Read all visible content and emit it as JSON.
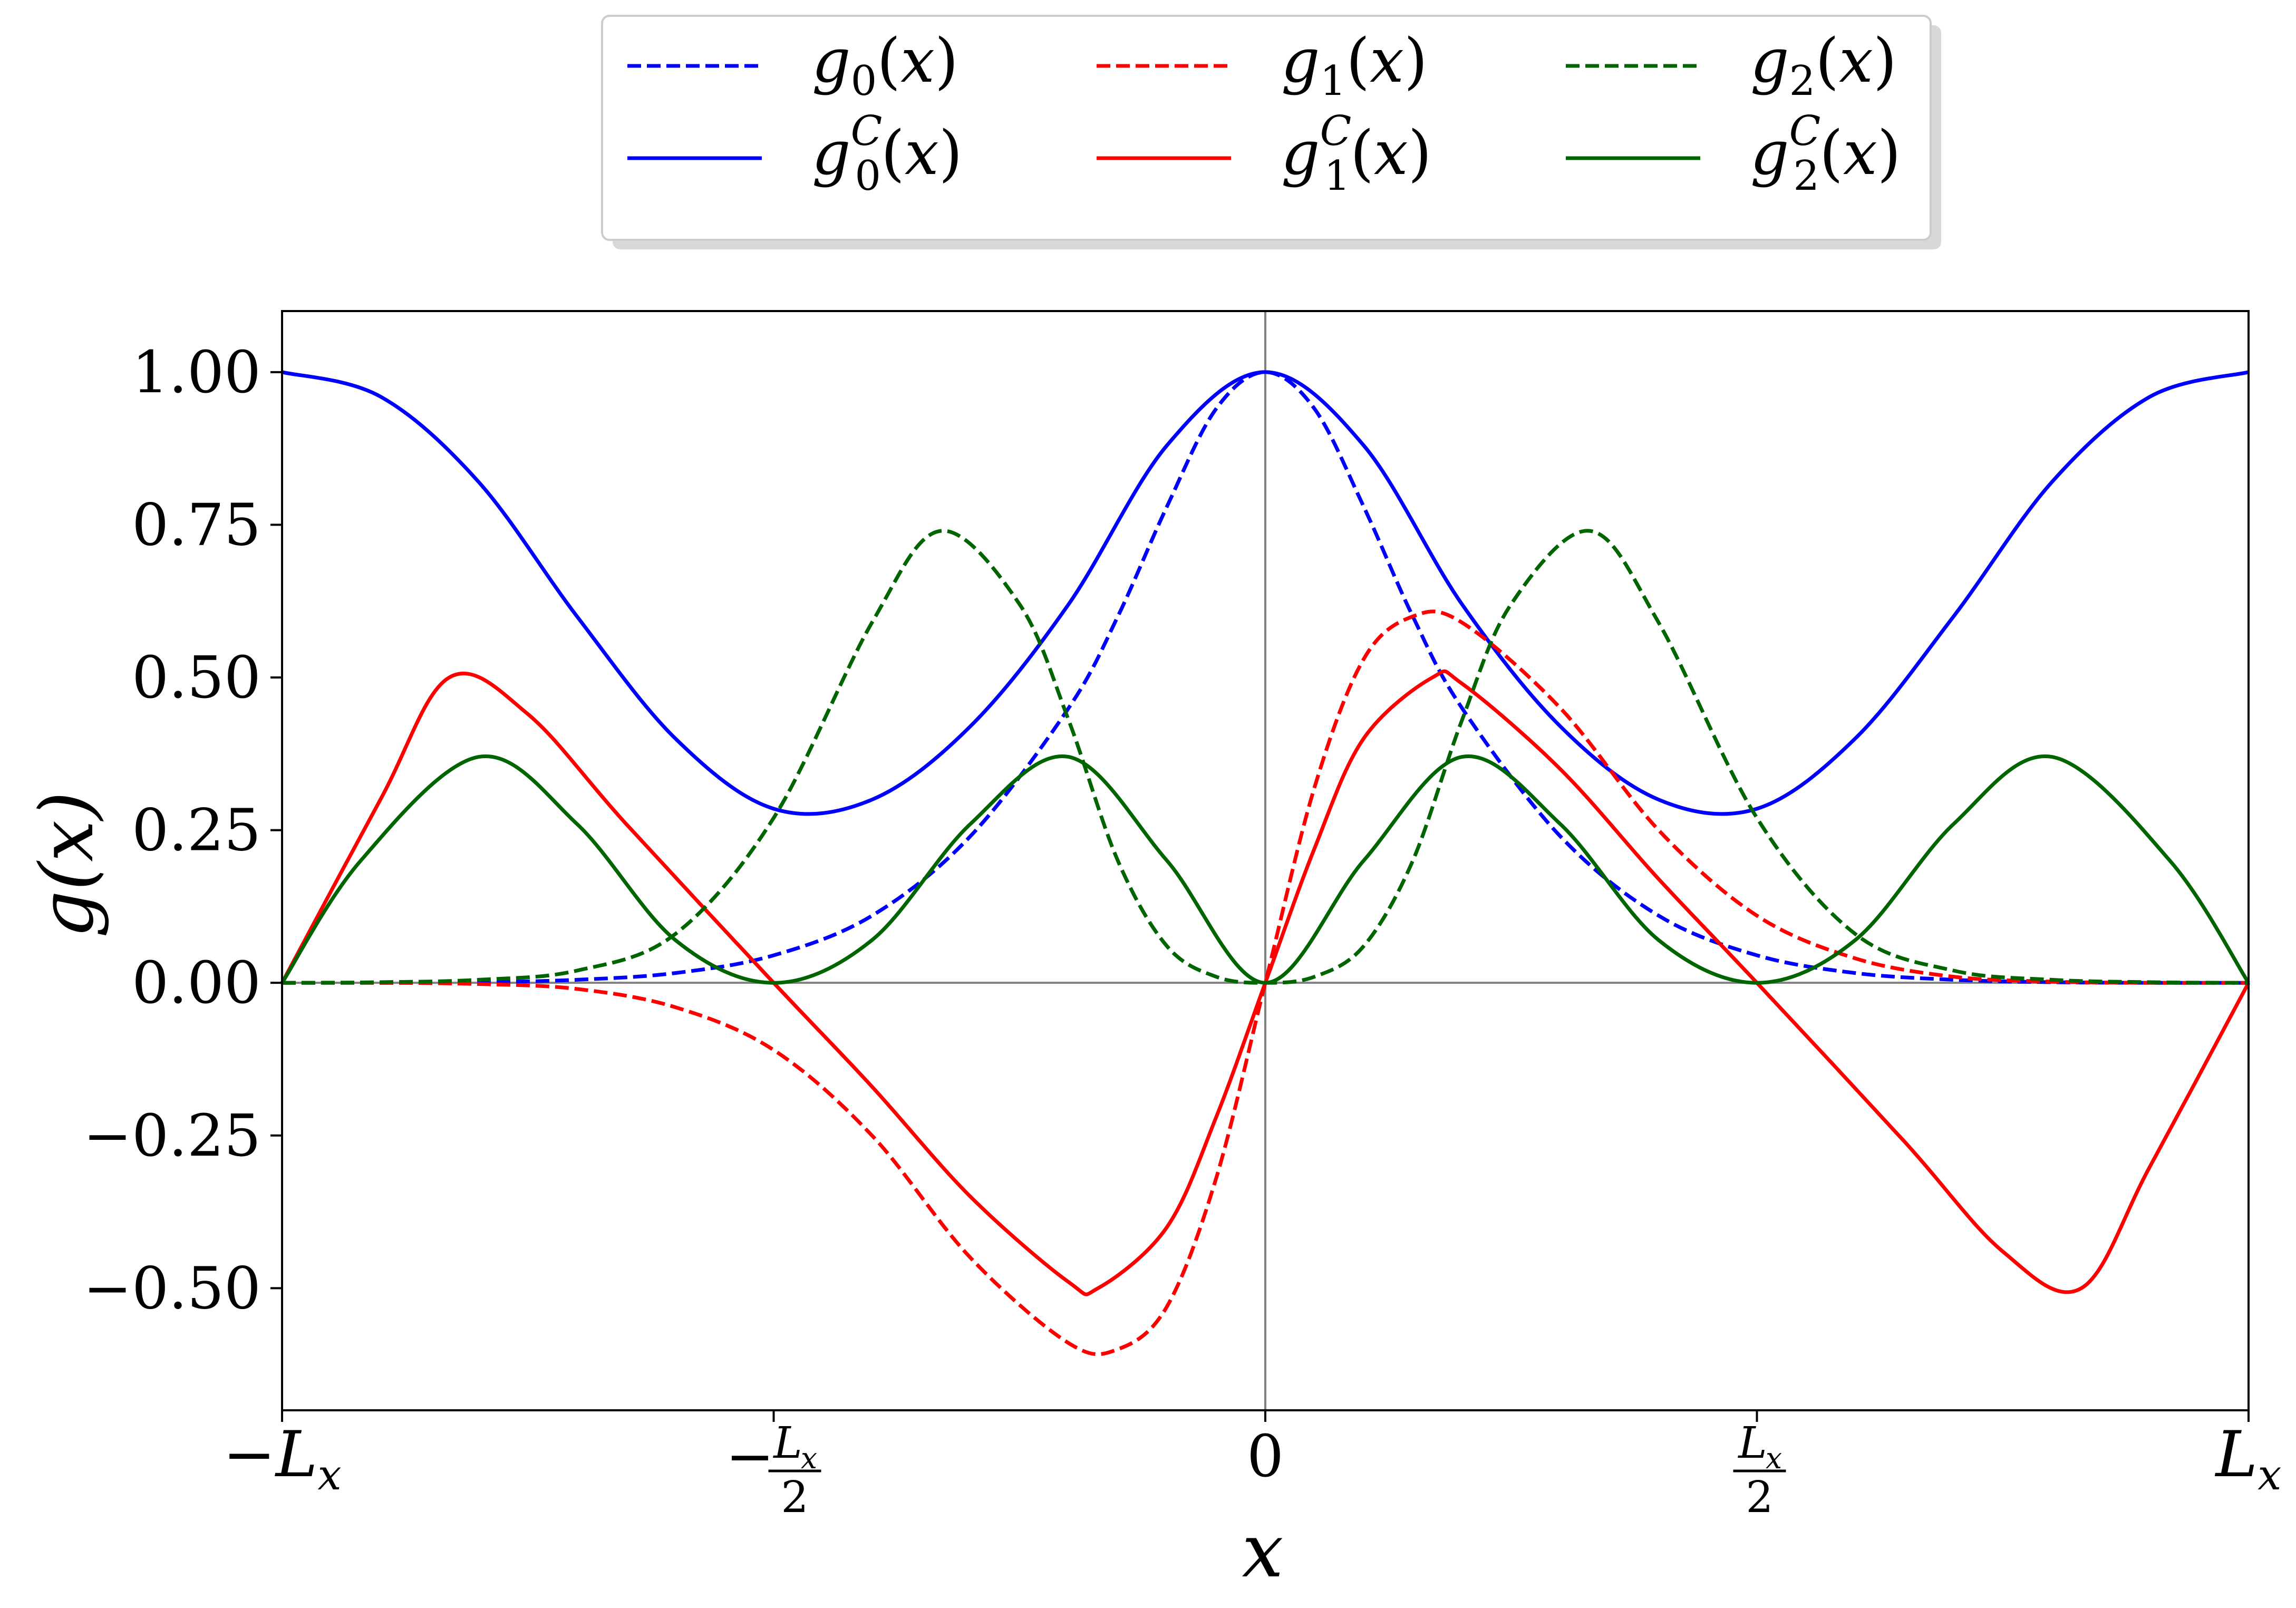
{
  "chart_data": {
    "type": "line",
    "title": "",
    "xlabel": "x",
    "ylabel": "g(x)",
    "xlim": [
      -1,
      1
    ],
    "ylim": [
      -0.7,
      1.1
    ],
    "x_unit": "L_x",
    "xticks": [
      {
        "value": -1,
        "label": "−L_x"
      },
      {
        "value": -0.5,
        "label": "−L_x/2"
      },
      {
        "value": 0,
        "label": "0"
      },
      {
        "value": 0.5,
        "label": "L_x/2"
      },
      {
        "value": 1,
        "label": "L_x"
      }
    ],
    "yticks": [
      {
        "value": 1.0,
        "label": "1.00"
      },
      {
        "value": 0.75,
        "label": "0.75"
      },
      {
        "value": 0.5,
        "label": "0.50"
      },
      {
        "value": 0.25,
        "label": "0.25"
      },
      {
        "value": 0.0,
        "label": "0.00"
      },
      {
        "value": -0.25,
        "label": "−0.25"
      },
      {
        "value": -0.5,
        "label": "−0.50"
      }
    ],
    "grid": false,
    "legend_position": "top-center, outside",
    "legend_columns": 3,
    "reference_lines": {
      "x": 0,
      "y": 0,
      "color": "#808080"
    },
    "series": [
      {
        "name": "g0(x)",
        "sub": "0",
        "sup": "",
        "color": "#0000ff",
        "dash": true,
        "x": [
          -1,
          -0.9,
          -0.8,
          -0.7,
          -0.6,
          -0.5,
          -0.4,
          -0.3,
          -0.2,
          -0.15,
          -0.1,
          -0.05,
          0,
          0.05,
          0.1,
          0.15,
          0.2,
          0.3,
          0.4,
          0.5,
          0.6,
          0.7,
          0.8,
          0.9,
          1
        ],
        "y": [
          0,
          0,
          0.001,
          0.005,
          0.016,
          0.045,
          0.11,
          0.24,
          0.45,
          0.6,
          0.78,
          0.94,
          1.0,
          0.94,
          0.78,
          0.6,
          0.45,
          0.24,
          0.11,
          0.045,
          0.016,
          0.005,
          0.001,
          0,
          0
        ]
      },
      {
        "name": "g0C(x)",
        "sub": "0",
        "sup": "C",
        "color": "#0000ff",
        "dash": false,
        "x": [
          -1,
          -0.9,
          -0.8,
          -0.7,
          -0.6,
          -0.5,
          -0.4,
          -0.3,
          -0.2,
          -0.1,
          0,
          0.1,
          0.2,
          0.3,
          0.4,
          0.5,
          0.6,
          0.7,
          0.8,
          0.9,
          1
        ],
        "y": [
          1.0,
          0.96,
          0.82,
          0.6,
          0.4,
          0.285,
          0.3,
          0.42,
          0.62,
          0.88,
          1.0,
          0.88,
          0.62,
          0.42,
          0.3,
          0.285,
          0.4,
          0.6,
          0.82,
          0.96,
          1.0
        ]
      },
      {
        "name": "g1(x)",
        "sub": "1",
        "sup": "",
        "color": "#ff0000",
        "dash": true,
        "x": [
          -1,
          -0.9,
          -0.8,
          -0.7,
          -0.6,
          -0.5,
          -0.4,
          -0.3,
          -0.2,
          -0.15,
          -0.1,
          -0.05,
          0,
          0.05,
          0.1,
          0.15,
          0.2,
          0.3,
          0.4,
          0.5,
          0.6,
          0.7,
          0.8,
          0.9,
          1
        ],
        "y": [
          0,
          0,
          -0.002,
          -0.01,
          -0.04,
          -0.11,
          -0.25,
          -0.45,
          -0.59,
          -0.6,
          -0.53,
          -0.32,
          0,
          0.32,
          0.53,
          0.6,
          0.59,
          0.45,
          0.25,
          0.11,
          0.04,
          0.01,
          0.002,
          0,
          0
        ]
      },
      {
        "name": "g1C(x)",
        "sub": "1",
        "sup": "C",
        "color": "#ff0000",
        "dash": false,
        "x": [
          -1,
          -0.9,
          -0.83,
          -0.75,
          -0.65,
          -0.5,
          -0.4,
          -0.3,
          -0.2,
          -0.17,
          -0.1,
          -0.05,
          0,
          0.05,
          0.1,
          0.17,
          0.2,
          0.3,
          0.4,
          0.5,
          0.65,
          0.75,
          0.83,
          0.9,
          1
        ],
        "y": [
          0,
          0.3,
          0.5,
          0.44,
          0.26,
          0,
          -0.17,
          -0.35,
          -0.49,
          -0.5,
          -0.4,
          -0.22,
          0,
          0.22,
          0.4,
          0.5,
          0.49,
          0.35,
          0.17,
          0,
          -0.26,
          -0.44,
          -0.5,
          -0.3,
          0
        ]
      },
      {
        "name": "g2(x)",
        "sub": "2",
        "sup": "",
        "color": "#006400",
        "dash": true,
        "x": [
          -1,
          -0.9,
          -0.8,
          -0.7,
          -0.6,
          -0.5,
          -0.4,
          -0.33,
          -0.25,
          -0.2,
          -0.15,
          -0.1,
          -0.05,
          0,
          0.05,
          0.1,
          0.15,
          0.2,
          0.25,
          0.33,
          0.4,
          0.5,
          0.6,
          0.7,
          0.8,
          0.9,
          1
        ],
        "y": [
          0,
          0.001,
          0.005,
          0.02,
          0.08,
          0.27,
          0.59,
          0.74,
          0.62,
          0.43,
          0.2,
          0.06,
          0.01,
          0,
          0.01,
          0.06,
          0.2,
          0.43,
          0.62,
          0.74,
          0.59,
          0.27,
          0.08,
          0.02,
          0.005,
          0.001,
          0
        ]
      },
      {
        "name": "g2C(x)",
        "sub": "2",
        "sup": "C",
        "color": "#006400",
        "dash": false,
        "x": [
          -1,
          -0.92,
          -0.8,
          -0.7,
          -0.6,
          -0.5,
          -0.4,
          -0.3,
          -0.2,
          -0.1,
          0,
          0.1,
          0.2,
          0.3,
          0.4,
          0.5,
          0.6,
          0.7,
          0.8,
          0.92,
          1
        ],
        "y": [
          0,
          0.2,
          0.37,
          0.26,
          0.07,
          0,
          0.07,
          0.26,
          0.37,
          0.2,
          0,
          0.2,
          0.37,
          0.26,
          0.07,
          0,
          0.07,
          0.26,
          0.37,
          0.2,
          0
        ]
      }
    ]
  }
}
